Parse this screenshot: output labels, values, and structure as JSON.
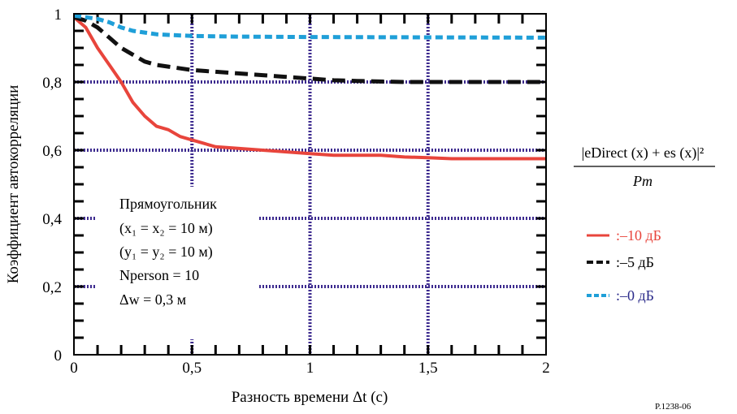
{
  "chart_data": {
    "type": "line",
    "xlabel": "Разность времени Δt (c)",
    "ylabel": "Коэффициент автокорреляции",
    "xlim": [
      0,
      2
    ],
    "ylim": [
      0,
      1
    ],
    "x_ticks": [
      "0",
      "0,5",
      "1",
      "1,5",
      "2"
    ],
    "y_ticks": [
      "0",
      "0,2",
      "0,4",
      "0,6",
      "0,8",
      "1"
    ],
    "grid": true,
    "legend_position": "right",
    "series": [
      {
        "name": ":–10 дБ",
        "color": "#e8453c",
        "style": "solid",
        "x": [
          0,
          0.05,
          0.1,
          0.15,
          0.2,
          0.25,
          0.3,
          0.35,
          0.4,
          0.45,
          0.5,
          0.55,
          0.6,
          0.7,
          0.8,
          0.9,
          1.0,
          1.1,
          1.2,
          1.3,
          1.4,
          1.5,
          1.6,
          1.7,
          1.8,
          1.9,
          2.0
        ],
        "y": [
          0.99,
          0.96,
          0.9,
          0.85,
          0.8,
          0.74,
          0.7,
          0.67,
          0.66,
          0.64,
          0.63,
          0.62,
          0.61,
          0.605,
          0.6,
          0.595,
          0.59,
          0.585,
          0.585,
          0.585,
          0.58,
          0.578,
          0.575,
          0.575,
          0.575,
          0.575,
          0.575
        ]
      },
      {
        "name": ":–5 дБ",
        "color": "#111111",
        "style": "dashed",
        "x": [
          0,
          0.05,
          0.1,
          0.15,
          0.2,
          0.25,
          0.3,
          0.35,
          0.4,
          0.45,
          0.5,
          0.6,
          0.7,
          0.8,
          0.9,
          1.0,
          1.1,
          1.2,
          1.4,
          1.6,
          1.8,
          2.0
        ],
        "y": [
          0.99,
          0.98,
          0.96,
          0.93,
          0.9,
          0.88,
          0.86,
          0.85,
          0.845,
          0.84,
          0.835,
          0.83,
          0.825,
          0.82,
          0.815,
          0.81,
          0.805,
          0.803,
          0.8,
          0.8,
          0.8,
          0.8
        ]
      },
      {
        "name": ":–0 дБ",
        "color": "#1f9fd8",
        "style": "dotted",
        "x": [
          0,
          0.05,
          0.1,
          0.15,
          0.2,
          0.25,
          0.3,
          0.35,
          0.4,
          0.5,
          0.7,
          1.0,
          1.5,
          2.0
        ],
        "y": [
          0.995,
          0.99,
          0.985,
          0.975,
          0.96,
          0.95,
          0.945,
          0.94,
          0.938,
          0.935,
          0.933,
          0.932,
          0.931,
          0.93
        ]
      }
    ],
    "annotations": [
      "Прямоугольник",
      "(x₁ = x₂ = 10 м)",
      "(y₁ = y₂ = 10 м)",
      "Nperson = 10",
      "Δw = 0,3 м"
    ],
    "formula": {
      "numerator": "|eDirect (x) + es (x)|²",
      "denominator": "Pm"
    },
    "figure_id": "P.1238-06"
  }
}
